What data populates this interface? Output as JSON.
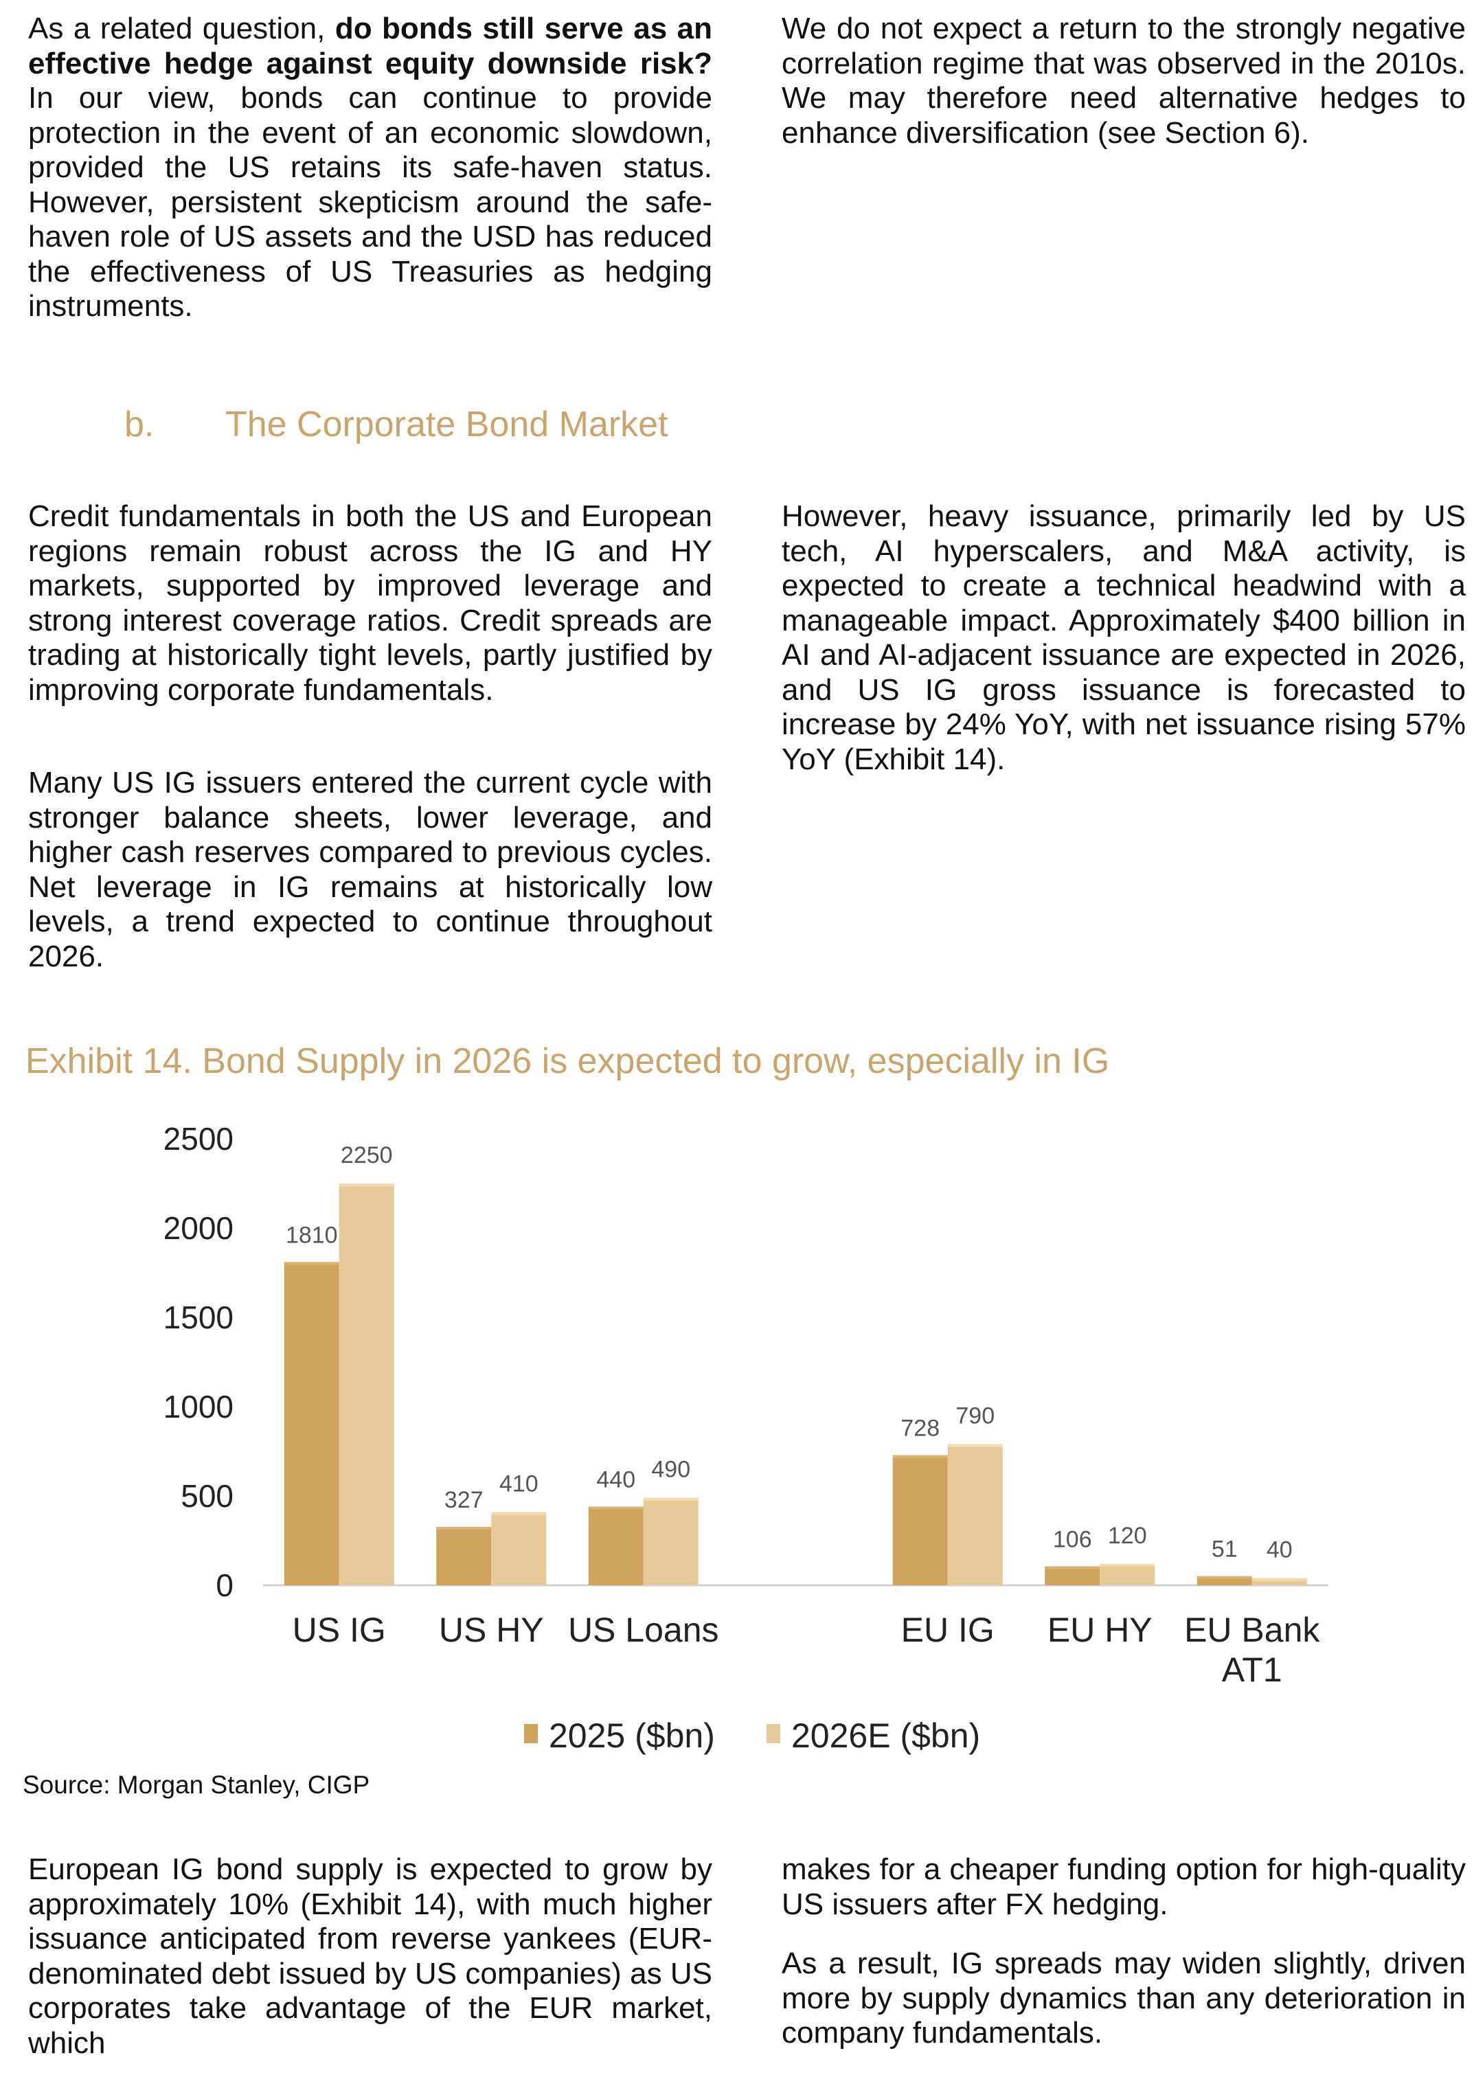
{
  "top": {
    "left_paragraph": {
      "pre": "As a related question, ",
      "bold": "do bonds still serve as an effective hedge against equity downside risk?",
      "post": " In our view, bonds can continue to provide protection in the event of an economic slowdown, provided the US retains its safe-haven status. However, persistent skepticism around the safe-haven role of US assets and the USD has reduced the effectiveness of US Treasuries as hedging instruments."
    },
    "right_paragraph": "We do not expect a return to the strongly negative correlation regime that was observed in the 2010s. We may therefore need alternative hedges to enhance diversification (see Section 6)."
  },
  "section": {
    "number": "b.",
    "title": "The Corporate Bond Market"
  },
  "corporate": {
    "left_paragraphs": [
      "Credit fundamentals in both the US and European regions remain robust across the IG and HY markets, supported by improved leverage and strong interest coverage ratios. Credit spreads are trading at historically tight levels, partly justified by improving corporate fundamentals.",
      "Many US IG issuers entered the current cycle with stronger balance sheets, lower leverage, and higher cash reserves compared to previous cycles. Net leverage in IG remains at historically low levels, a trend expected to continue throughout 2026."
    ],
    "right_paragraph": "However, heavy issuance, primarily led by US tech, AI hyperscalers, and M&A activity, is expected to create a technical headwind with a manageable impact. Approximately $400 billion in AI and AI-adjacent issuance are expected in 2026, and US IG gross issuance is forecasted to increase by 24% YoY, with net issuance rising 57% YoY (Exhibit 14)."
  },
  "exhibit_title": "Exhibit 14. Bond Supply in 2026 is expected to grow, especially in IG",
  "chart_data": {
    "type": "bar",
    "title": "",
    "xlabel": "",
    "ylabel": "",
    "ylim": [
      0,
      2500
    ],
    "yticks": [
      "0",
      "500",
      "1000",
      "1500",
      "2000",
      "2500"
    ],
    "grid": false,
    "legend_position": "bottom",
    "categories": [
      "US IG",
      "US HY",
      "US Loans",
      "",
      "EU IG",
      "EU HY",
      "EU Bank\nAT1"
    ],
    "series": [
      {
        "name": "2025 ($bn)",
        "color": "#cfa35e",
        "values": [
          1810,
          327,
          440,
          null,
          728,
          106,
          51
        ]
      },
      {
        "name": "2026E ($bn)",
        "color": "#e6cb98",
        "values": [
          2250,
          410,
          490,
          null,
          790,
          120,
          40
        ]
      }
    ]
  },
  "source": "Source: Morgan Stanley, CIGP",
  "bottom": {
    "left_paragraph": "European IG bond supply is expected to grow by approximately 10% (Exhibit 14), with much higher issuance anticipated from reverse yankees (EUR-denominated debt issued by US companies) as US corporates take advantage of the EUR market, which",
    "right_paragraphs": [
      "makes for a cheaper funding option for high-quality US issuers after FX hedging.",
      "As a result, IG spreads may widen slightly, driven more by supply dynamics than any deterioration in company fundamentals."
    ]
  }
}
